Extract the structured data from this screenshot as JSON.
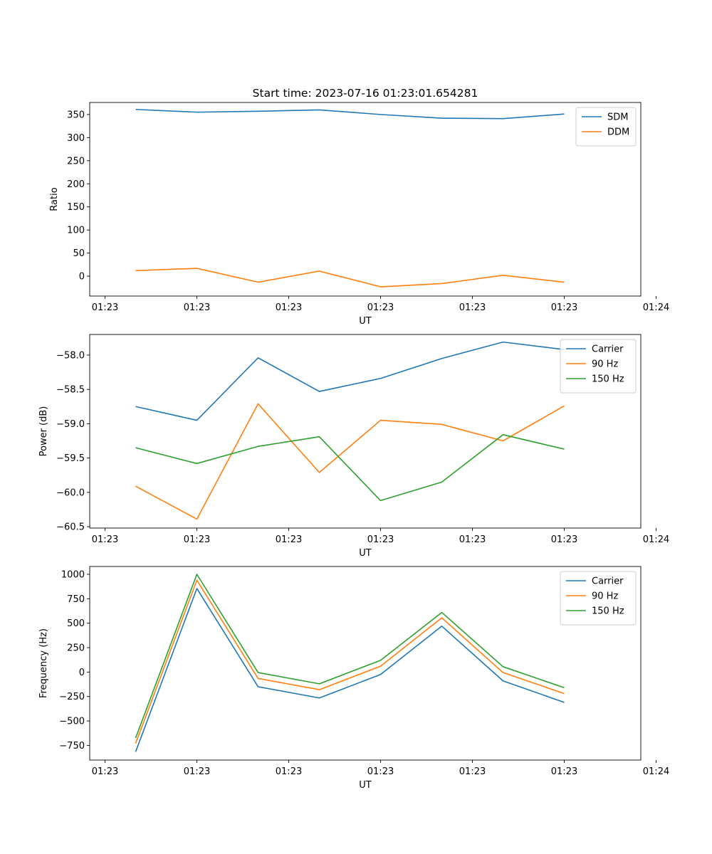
{
  "figure": {
    "title": "Start time: 2023-07-16 01:23:01.654281"
  },
  "colors": {
    "blue": "#1f77b4",
    "orange": "#ff7f0e",
    "green": "#2ca02c"
  },
  "chart_data": [
    {
      "type": "line",
      "title": "Start time: 2023-07-16 01:23:01.654281",
      "xlabel": "UT",
      "ylabel": "Ratio",
      "x": [
        1,
        2,
        3,
        4,
        5,
        6,
        7,
        8
      ],
      "xlim": [
        0.25,
        9.25
      ],
      "xticks": [
        0.5,
        2,
        3.5,
        5,
        6.5,
        8,
        9.5
      ],
      "xtick_labels": [
        "01:23",
        "01:23",
        "01:23",
        "01:23",
        "01:23",
        "01:23",
        "01:24"
      ],
      "ylim": [
        -43,
        376
      ],
      "yticks": [
        0,
        50,
        100,
        150,
        200,
        250,
        300,
        350
      ],
      "ytick_labels": [
        "0",
        "50",
        "100",
        "150",
        "200",
        "250",
        "300",
        "350"
      ],
      "legend_position": "top-right",
      "series": [
        {
          "name": "SDM",
          "color": "#1f77b4",
          "values": [
            361,
            355,
            357,
            360,
            350,
            342,
            341,
            351
          ]
        },
        {
          "name": "DDM",
          "color": "#ff7f0e",
          "values": [
            12,
            17,
            -13,
            11,
            -23,
            -16,
            2,
            -13
          ]
        }
      ]
    },
    {
      "type": "line",
      "title": "",
      "xlabel": "UT",
      "ylabel": "Power (dB)",
      "x": [
        1,
        2,
        3,
        4,
        5,
        6,
        7,
        8
      ],
      "xlim": [
        0.25,
        9.25
      ],
      "xticks": [
        0.5,
        2,
        3.5,
        5,
        6.5,
        8,
        9.5
      ],
      "xtick_labels": [
        "01:23",
        "01:23",
        "01:23",
        "01:23",
        "01:23",
        "01:23",
        "01:24"
      ],
      "ylim": [
        -60.52,
        -57.7
      ],
      "yticks": [
        -60.5,
        -60.0,
        -59.5,
        -59.0,
        -58.5,
        -58.0
      ],
      "ytick_labels": [
        "−60.5",
        "−60.0",
        "−59.5",
        "−59.0",
        "−58.5",
        "−58.0"
      ],
      "legend_position": "top-right",
      "series": [
        {
          "name": "Carrier",
          "color": "#1f77b4",
          "values": [
            -58.75,
            -58.95,
            -58.04,
            -58.53,
            -58.34,
            -58.05,
            -57.81,
            -57.92
          ]
        },
        {
          "name": "90 Hz",
          "color": "#ff7f0e",
          "values": [
            -59.91,
            -60.39,
            -58.71,
            -59.71,
            -58.95,
            -59.01,
            -59.25,
            -58.74
          ]
        },
        {
          "name": "150 Hz",
          "color": "#2ca02c",
          "values": [
            -59.35,
            -59.58,
            -59.33,
            -59.19,
            -60.12,
            -59.85,
            -59.16,
            -59.37
          ]
        }
      ]
    },
    {
      "type": "line",
      "title": "",
      "xlabel": "UT",
      "ylabel": "Frequency (Hz)",
      "x": [
        1,
        2,
        3,
        4,
        5,
        6,
        7,
        8
      ],
      "xlim": [
        0.25,
        9.25
      ],
      "xticks": [
        0.5,
        2,
        3.5,
        5,
        6.5,
        8,
        9.5
      ],
      "xtick_labels": [
        "01:23",
        "01:23",
        "01:23",
        "01:23",
        "01:23",
        "01:23",
        "01:24"
      ],
      "ylim": [
        -900,
        1080
      ],
      "yticks": [
        -750,
        -500,
        -250,
        0,
        250,
        500,
        750,
        1000
      ],
      "ytick_labels": [
        "−750",
        "−500",
        "−250",
        "0",
        "250",
        "500",
        "750",
        "1000"
      ],
      "legend_position": "top-right",
      "series": [
        {
          "name": "Carrier",
          "color": "#1f77b4",
          "values": [
            -815,
            855,
            -150,
            -265,
            -25,
            470,
            -90,
            -310
          ]
        },
        {
          "name": "90 Hz",
          "color": "#ff7f0e",
          "values": [
            -730,
            940,
            -65,
            -180,
            60,
            555,
            -5,
            -220
          ]
        },
        {
          "name": "150 Hz",
          "color": "#2ca02c",
          "values": [
            -675,
            1000,
            -5,
            -120,
            120,
            610,
            55,
            -160
          ]
        }
      ]
    }
  ]
}
